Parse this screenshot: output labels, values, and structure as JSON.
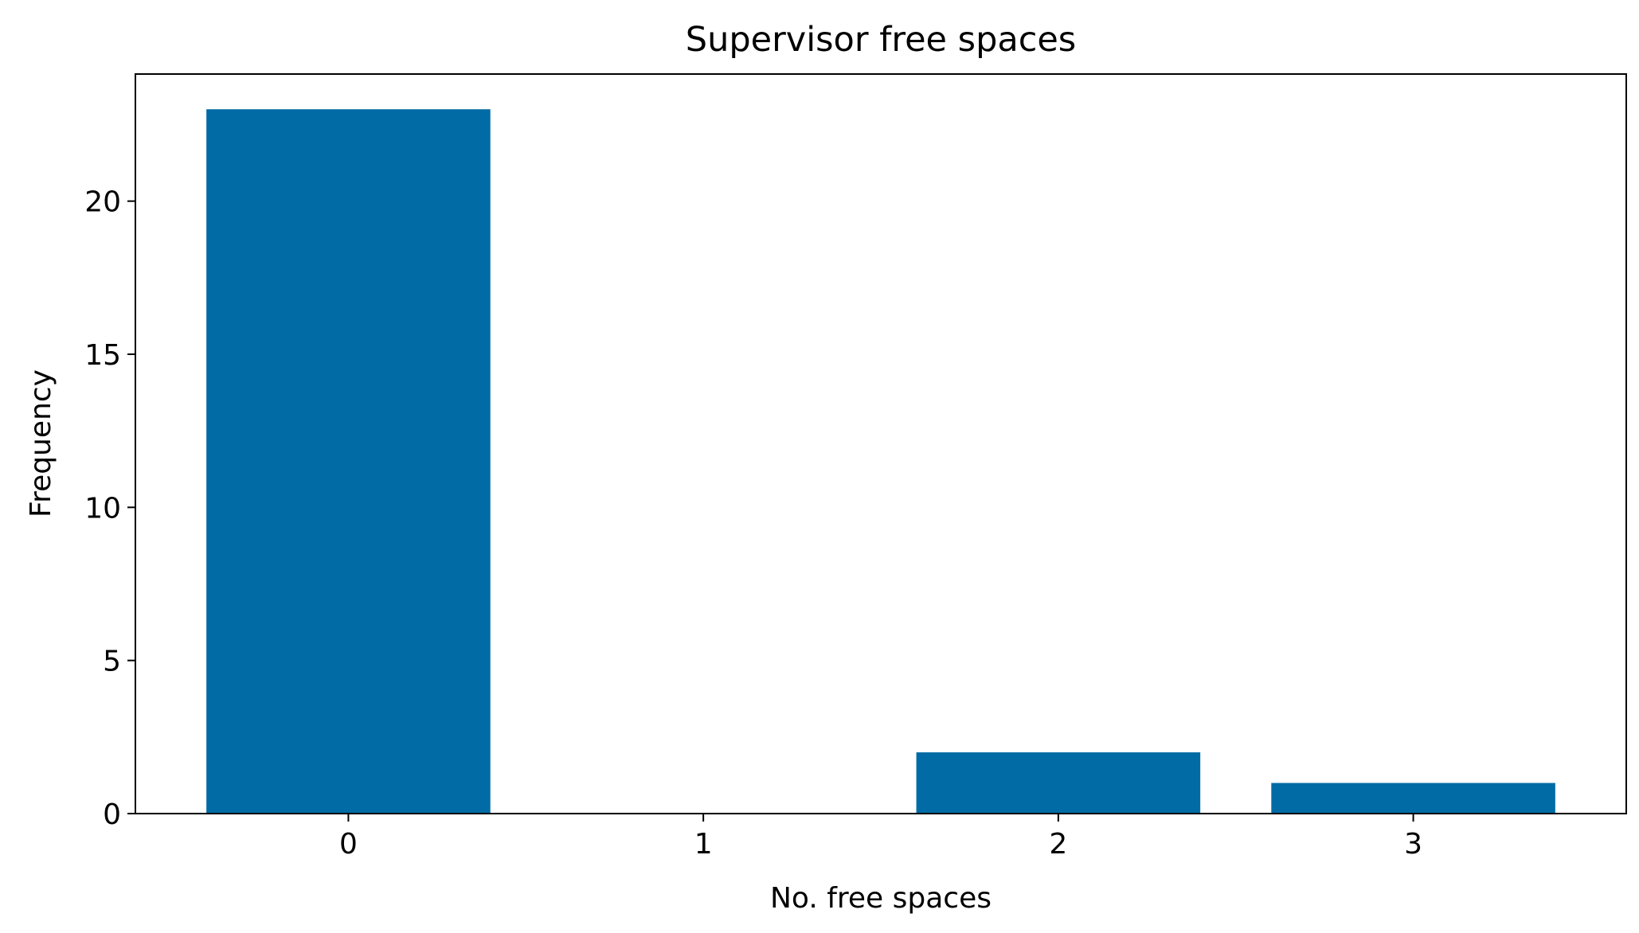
{
  "chart_data": {
    "type": "bar",
    "title": "Supervisor free spaces",
    "xlabel": "No. free spaces",
    "ylabel": "Frequency",
    "categories": [
      "0",
      "1",
      "2",
      "3"
    ],
    "x": [
      0,
      1,
      2,
      3
    ],
    "values": [
      23,
      0,
      2,
      1
    ],
    "xlim": [
      -0.6,
      3.6
    ],
    "ylim": [
      0,
      24.15
    ],
    "xticks": [
      "0",
      "1",
      "2",
      "3"
    ],
    "yticks": [
      "0",
      "5",
      "10",
      "15",
      "20"
    ],
    "bar_color": "#006ba4",
    "grid": false,
    "legend": "none"
  }
}
